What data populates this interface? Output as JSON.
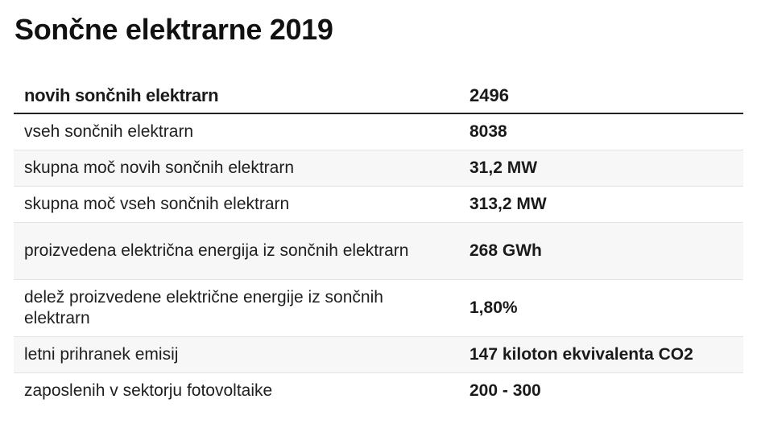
{
  "title": "Sončne elektrarne 2019",
  "table": {
    "header": {
      "label": "novih sončnih elektrarn",
      "value": "2496"
    },
    "rows": [
      {
        "label": "vseh sončnih elektrarn",
        "value": "8038"
      },
      {
        "label": "skupna moč novih sončnih elektrarn",
        "value": "31,2 MW"
      },
      {
        "label": "skupna moč vseh sončnih elektrarn",
        "value": "313,2 MW"
      },
      {
        "label": "proizvedena električna energija iz sončnih elektrarn",
        "value": "268 GWh"
      },
      {
        "label": "delež proizvedene električne energije iz sončnih elektrarn",
        "value": "1,80%"
      },
      {
        "label": "letni prihranek emisij",
        "value": "147 kiloton ekvivalenta CO2"
      },
      {
        "label": "zaposlenih v sektorju fotovoltaike",
        "value": "200 - 300"
      }
    ]
  },
  "colors": {
    "header_rule": "#222222",
    "row_divider": "#e3e3e3",
    "stripe": "#f7f7f7"
  }
}
